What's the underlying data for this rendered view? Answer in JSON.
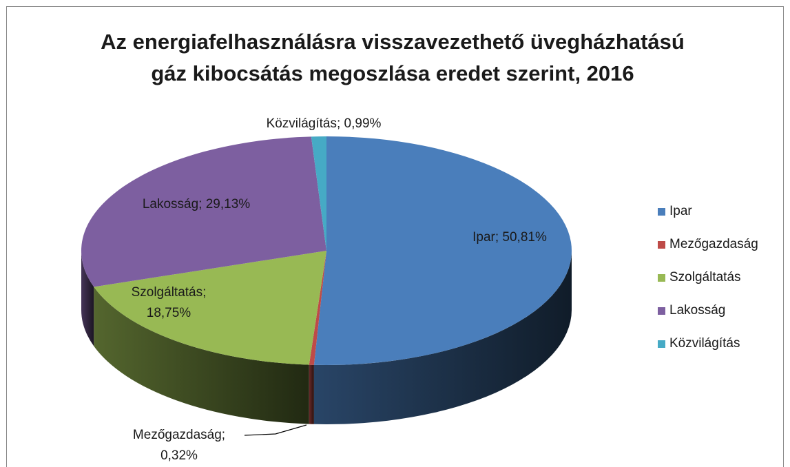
{
  "chart_data": {
    "type": "pie",
    "title": "Az energiafelhasználásra visszavezethető üvegházhatású gáz kibocsátás megoszlása eredet szerint, 2016",
    "categories": [
      "Ipar",
      "Mezőgazdaság",
      "Szolgáltatás",
      "Lakosság",
      "Közvilágítás"
    ],
    "values": [
      50.81,
      0.32,
      18.75,
      29.13,
      0.99
    ],
    "value_labels": [
      "Ipar; 50,81%",
      "Mezőgazdaság; 0,32%",
      "Szolgáltatás; 18,75%",
      "Lakosság; 29,13%",
      "Közvilágítás; 0,99%"
    ],
    "colors": [
      "#4a7ebb",
      "#be4b48",
      "#98b954",
      "#7d5fa0",
      "#46aac5"
    ],
    "legend": "right"
  }
}
